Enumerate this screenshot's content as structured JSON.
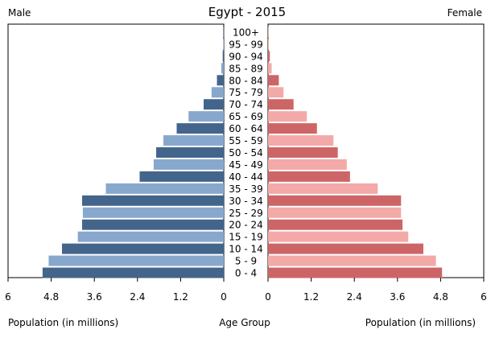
{
  "chart_data": {
    "type": "bar",
    "title": "Egypt - 2015",
    "left_label": "Male",
    "right_label": "Female",
    "xlabel_left": "Population (in millions)",
    "xlabel_center": "Age Group",
    "xlabel_right": "Population (in millions)",
    "xlim": [
      0,
      6
    ],
    "ticks": [
      "6",
      "4.8",
      "3.6",
      "2.4",
      "1.2",
      "0"
    ],
    "ticks_right": [
      "0",
      "1.2",
      "2.4",
      "3.6",
      "4.8",
      "6"
    ],
    "categories": [
      "0 - 4",
      "5 - 9",
      "10 - 14",
      "15 - 19",
      "20 - 24",
      "25 - 29",
      "30 - 34",
      "35 - 39",
      "40 - 44",
      "45 - 49",
      "50 - 54",
      "55 - 59",
      "60 - 64",
      "65 - 69",
      "70 - 74",
      "75 - 79",
      "80 - 84",
      "85 - 89",
      "90 - 94",
      "95 - 99",
      "100+"
    ],
    "series": [
      {
        "name": "Male",
        "side": "left",
        "colors": [
          "#44658b",
          "#87a8cc"
        ],
        "values": [
          5.04,
          4.87,
          4.5,
          4.06,
          3.94,
          3.92,
          3.94,
          3.28,
          2.34,
          1.95,
          1.88,
          1.68,
          1.31,
          0.98,
          0.56,
          0.34,
          0.19,
          0.07,
          0.03,
          0.01,
          0.005
        ]
      },
      {
        "name": "Female",
        "side": "right",
        "colors": [
          "#cd6566",
          "#f2a9a8"
        ],
        "values": [
          4.84,
          4.67,
          4.32,
          3.9,
          3.74,
          3.7,
          3.7,
          3.05,
          2.28,
          2.19,
          1.94,
          1.82,
          1.36,
          1.08,
          0.71,
          0.43,
          0.3,
          0.1,
          0.05,
          0.02,
          0.005
        ]
      }
    ],
    "grid": false
  }
}
